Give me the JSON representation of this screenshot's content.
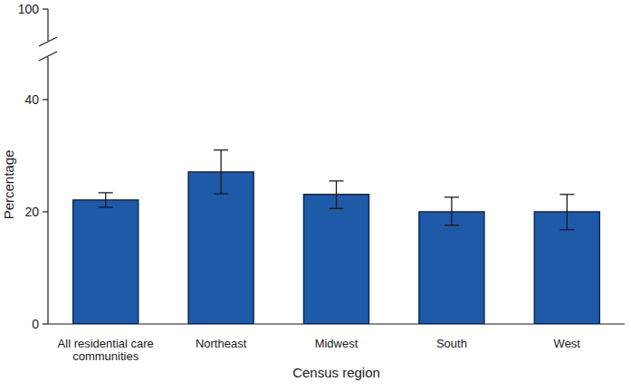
{
  "chart_data": {
    "type": "bar",
    "x_label": "Census region",
    "y_label": "Percentage",
    "categories": [
      "All residential care communities",
      "Northeast",
      "Midwest",
      "South",
      "West"
    ],
    "values": [
      22.1,
      27.1,
      23.1,
      20.0,
      20.0
    ],
    "ci_lower": [
      20.8,
      23.2,
      20.6,
      17.6,
      16.8
    ],
    "ci_upper": [
      23.4,
      31.0,
      25.5,
      22.6,
      23.1
    ],
    "color": "#1f5aa8",
    "ylim": [
      0,
      100
    ],
    "yticks": [
      0,
      20,
      40,
      100
    ],
    "grid": false
  }
}
